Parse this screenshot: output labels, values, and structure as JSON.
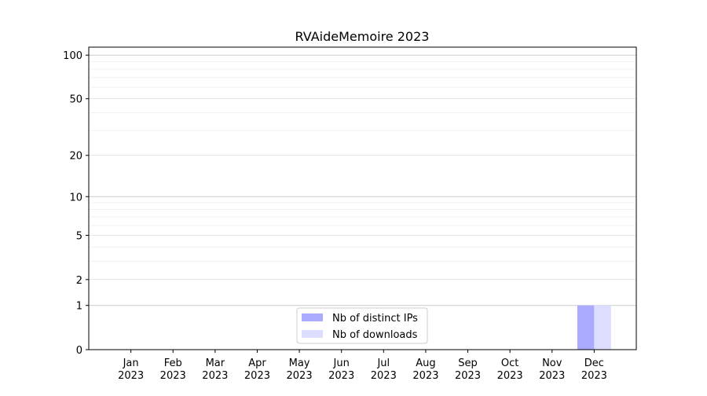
{
  "chart_data": {
    "type": "bar",
    "title": "RVAideMemoire 2023",
    "xlabel": "",
    "ylabel": "",
    "y_scale": "log(1+y)",
    "ylim": [
      0,
      113.5
    ],
    "y_ticks": [
      0,
      1,
      2,
      5,
      10,
      20,
      50,
      100
    ],
    "categories": [
      "Jan\n2023",
      "Feb\n2023",
      "Mar\n2023",
      "Apr\n2023",
      "May\n2023",
      "Jun\n2023",
      "Jul\n2023",
      "Aug\n2023",
      "Sep\n2023",
      "Oct\n2023",
      "Nov\n2023",
      "Dec\n2023"
    ],
    "series": [
      {
        "name": "Nb of distinct IPs",
        "color": "#aaaaff",
        "values": [
          0,
          0,
          0,
          0,
          0,
          0,
          0,
          0,
          0,
          0,
          0,
          1
        ]
      },
      {
        "name": "Nb of downloads",
        "color": "#ddddff",
        "values": [
          0,
          0,
          0,
          0,
          0,
          0,
          0,
          0,
          0,
          0,
          0,
          1
        ]
      }
    ],
    "grid": true,
    "legend_position": "lower-center"
  }
}
